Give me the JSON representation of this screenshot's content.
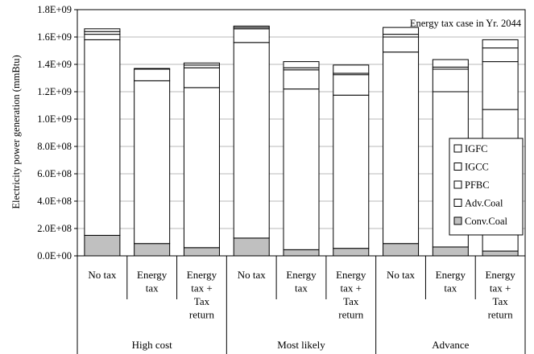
{
  "chart_data": {
    "type": "bar",
    "stacked": true,
    "annotation": "Energy tax case in Yr. 2044",
    "ylabel": "Electricity power generation (mmBtu)",
    "ylim": [
      0,
      1800000000
    ],
    "y_tick_step": 200000000,
    "y_tick_labels": [
      "0.0E+00",
      "2.0E+08",
      "4.0E+08",
      "6.0E+08",
      "8.0E+08",
      "1.0E+09",
      "1.2E+09",
      "1.4E+09",
      "1.6E+09",
      "1.8E+09"
    ],
    "grid": true,
    "legend_position": "right",
    "groups": [
      {
        "label": "High cost",
        "categories": [
          [
            "No tax"
          ],
          [
            "Energy",
            "tax"
          ],
          [
            "Energy",
            "tax +",
            "Tax",
            "return"
          ]
        ]
      },
      {
        "label": "Most likely",
        "categories": [
          [
            "No tax"
          ],
          [
            "Energy",
            "tax"
          ],
          [
            "Energy",
            "tax +",
            "Tax",
            "return"
          ]
        ]
      },
      {
        "label": "Advance",
        "categories": [
          [
            "No tax"
          ],
          [
            "Energy",
            "tax"
          ],
          [
            "Energy",
            "tax +",
            "Tax",
            "return"
          ]
        ]
      }
    ],
    "series": [
      {
        "name": "Conv.Coal",
        "color": "#c0c0c0",
        "values": [
          150000000,
          90000000,
          60000000,
          130000000,
          45000000,
          55000000,
          90000000,
          65000000,
          35000000
        ]
      },
      {
        "name": "Adv.Coal",
        "color": "#ffffff",
        "values": [
          1430000000,
          1190000000,
          1170000000,
          1430000000,
          1175000000,
          1120000000,
          1400000000,
          1135000000,
          1035000000
        ]
      },
      {
        "name": "PFBC",
        "color": "#ffffff",
        "values": [
          40000000,
          85000000,
          145000000,
          100000000,
          140000000,
          150000000,
          110000000,
          165000000,
          350000000
        ]
      },
      {
        "name": "IGCC",
        "color": "#ffffff",
        "values": [
          20000000,
          5000000,
          20000000,
          10000000,
          15000000,
          10000000,
          20000000,
          15000000,
          100000000
        ]
      },
      {
        "name": "IGFC",
        "color": "#ffffff",
        "values": [
          20000000,
          0,
          15000000,
          10000000,
          45000000,
          60000000,
          50000000,
          55000000,
          60000000
        ]
      }
    ]
  }
}
